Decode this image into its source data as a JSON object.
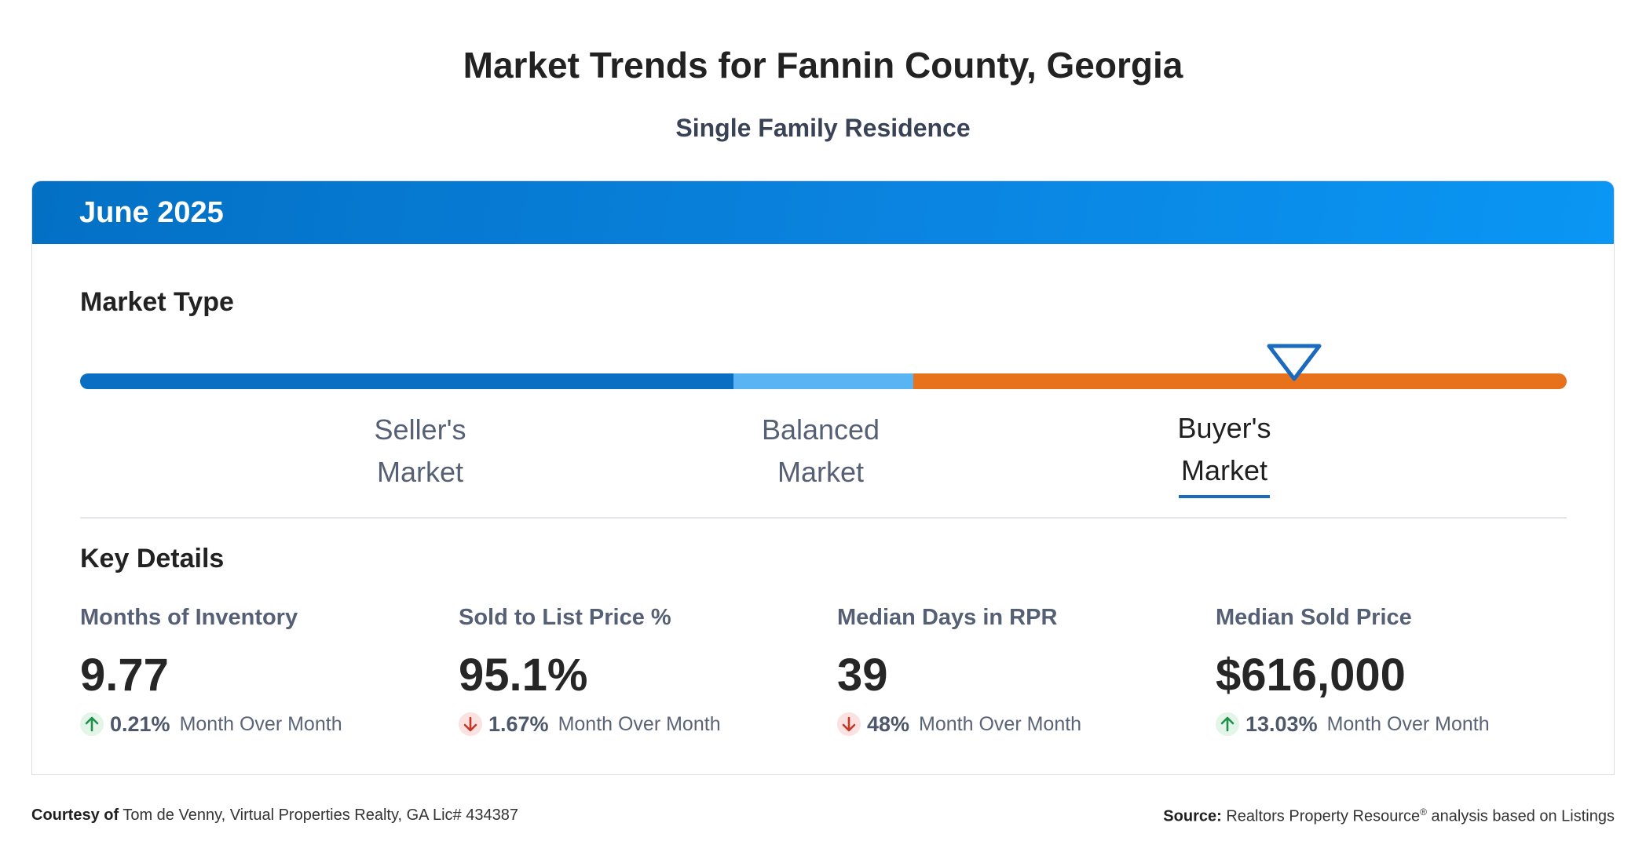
{
  "header": {
    "title": "Market Trends for Fannin County, Georgia",
    "subtitle": "Single Family Residence"
  },
  "card": {
    "period": "June 2025",
    "market_type": {
      "title": "Market Type",
      "segments": [
        {
          "line1": "Seller's",
          "line2": "Market",
          "color": "#0a6fc2",
          "active": false
        },
        {
          "line1": "Balanced",
          "line2": "Market",
          "color": "#5ab4f4",
          "active": false
        },
        {
          "line1": "Buyer's",
          "line2": "Market",
          "color": "#e8721c",
          "active": true
        }
      ]
    },
    "key_details": {
      "title": "Key Details",
      "metrics": [
        {
          "label": "Months of Inventory",
          "value": "9.77",
          "direction": "up",
          "pct": "0.21%",
          "suffix": "Month Over Month"
        },
        {
          "label": "Sold to List Price %",
          "value": "95.1%",
          "direction": "down",
          "pct": "1.67%",
          "suffix": "Month Over Month"
        },
        {
          "label": "Median Days in RPR",
          "value": "39",
          "direction": "down",
          "pct": "48%",
          "suffix": "Month Over Month"
        },
        {
          "label": "Median Sold Price",
          "value": "$616,000",
          "direction": "up",
          "pct": "13.03%",
          "suffix": "Month Over Month"
        }
      ]
    }
  },
  "colors": {
    "header_gradient_start": "#0370c4",
    "header_gradient_end": "#0a96f4",
    "up_arrow": "#1f8f4a",
    "down_arrow": "#c0392b",
    "marker_stroke": "#1a6bbd"
  },
  "footer": {
    "courtesy_label": "Courtesy of",
    "courtesy_text": "Tom de Venny, Virtual Properties Realty, GA Lic# 434387",
    "source_label": "Source:",
    "source_text_1": "Realtors Property Resource",
    "source_mark": "®",
    "source_text_2": "analysis based on Listings"
  }
}
